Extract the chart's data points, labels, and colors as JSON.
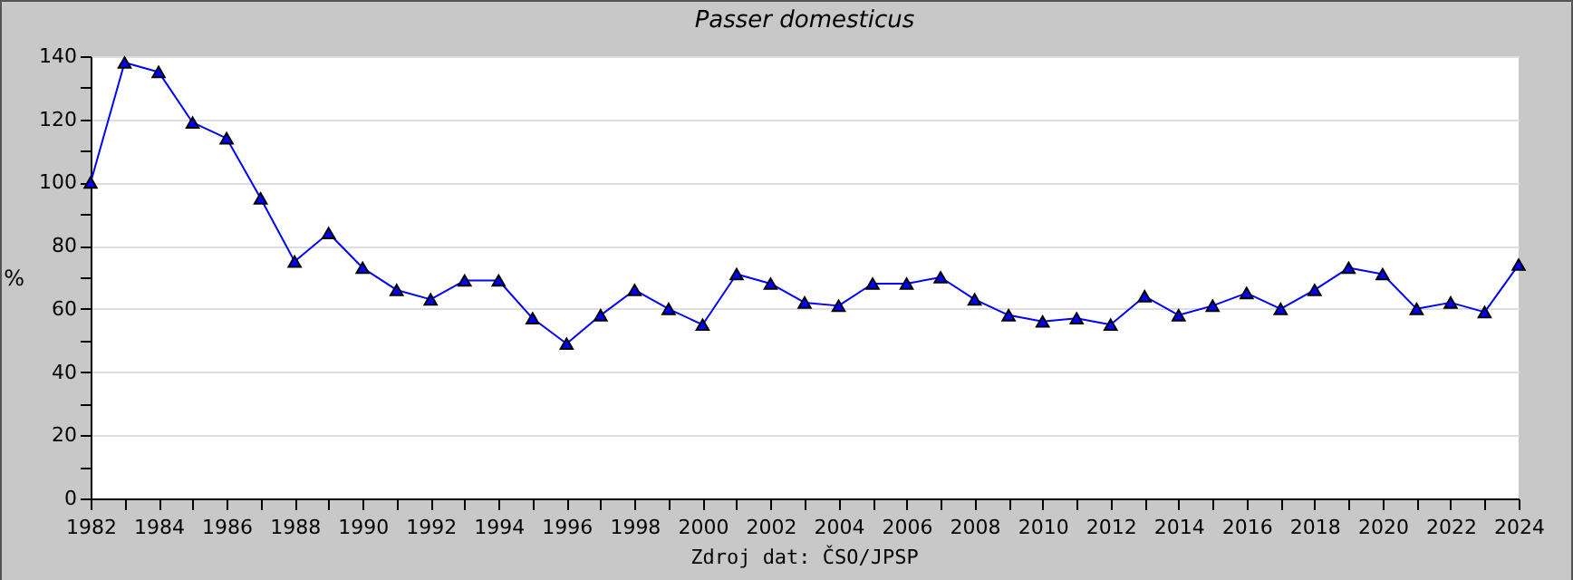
{
  "chart_data": {
    "type": "line",
    "title": "Passer domesticus",
    "ylabel": "%",
    "annotations": [
      "Zdroj dat: ČSO/JPSP"
    ],
    "x": [
      1982,
      1983,
      1984,
      1985,
      1986,
      1987,
      1988,
      1989,
      1990,
      1991,
      1992,
      1993,
      1994,
      1995,
      1996,
      1997,
      1998,
      1999,
      2000,
      2001,
      2002,
      2003,
      2004,
      2005,
      2006,
      2007,
      2008,
      2009,
      2010,
      2011,
      2012,
      2013,
      2014,
      2015,
      2016,
      2017,
      2018,
      2019,
      2020,
      2021,
      2022,
      2023,
      2024
    ],
    "series": [
      {
        "color": "#0000ff",
        "values": [
          100,
          138,
          135,
          119,
          114,
          95,
          75,
          84,
          73,
          66,
          63,
          69,
          69,
          57,
          49,
          58,
          66,
          60,
          55,
          71,
          68,
          62,
          61,
          68,
          68,
          70,
          63,
          58,
          56,
          57,
          55,
          64,
          58,
          61,
          65,
          60,
          66,
          73,
          71,
          60,
          62,
          59,
          74
        ]
      }
    ],
    "xlim": [
      1982,
      2024
    ],
    "xticks": [
      {
        "value": 1982,
        "label": "1982"
      },
      {
        "value": 1983,
        "label": null
      },
      {
        "value": 1984,
        "label": "1984"
      },
      {
        "value": 1985,
        "label": null
      },
      {
        "value": 1986,
        "label": "1986"
      },
      {
        "value": 1987,
        "label": null
      },
      {
        "value": 1988,
        "label": "1988"
      },
      {
        "value": 1989,
        "label": null
      },
      {
        "value": 1990,
        "label": "1990"
      },
      {
        "value": 1991,
        "label": null
      },
      {
        "value": 1992,
        "label": "1992"
      },
      {
        "value": 1993,
        "label": null
      },
      {
        "value": 1994,
        "label": "1994"
      },
      {
        "value": 1995,
        "label": null
      },
      {
        "value": 1996,
        "label": "1996"
      },
      {
        "value": 1997,
        "label": null
      },
      {
        "value": 1998,
        "label": "1998"
      },
      {
        "value": 1999,
        "label": null
      },
      {
        "value": 2000,
        "label": "2000"
      },
      {
        "value": 2001,
        "label": null
      },
      {
        "value": 2002,
        "label": "2002"
      },
      {
        "value": 2003,
        "label": null
      },
      {
        "value": 2004,
        "label": "2004"
      },
      {
        "value": 2005,
        "label": null
      },
      {
        "value": 2006,
        "label": "2006"
      },
      {
        "value": 2007,
        "label": null
      },
      {
        "value": 2008,
        "label": "2008"
      },
      {
        "value": 2009,
        "label": null
      },
      {
        "value": 2010,
        "label": "2010"
      },
      {
        "value": 2011,
        "label": null
      },
      {
        "value": 2012,
        "label": "2012"
      },
      {
        "value": 2013,
        "label": null
      },
      {
        "value": 2014,
        "label": "2014"
      },
      {
        "value": 2015,
        "label": null
      },
      {
        "value": 2016,
        "label": "2016"
      },
      {
        "value": 2017,
        "label": null
      },
      {
        "value": 2018,
        "label": "2018"
      },
      {
        "value": 2019,
        "label": null
      },
      {
        "value": 2020,
        "label": "2020"
      },
      {
        "value": 2021,
        "label": null
      },
      {
        "value": 2022,
        "label": "2022"
      },
      {
        "value": 2023,
        "label": null
      },
      {
        "value": 2024,
        "label": "2024"
      }
    ],
    "ylim": [
      0,
      140
    ],
    "yticks": [
      0,
      {
        "value": 10,
        "label": null
      },
      20,
      {
        "value": 30,
        "label": null
      },
      40,
      {
        "value": 50,
        "label": null
      },
      60,
      {
        "value": 70,
        "label": null
      },
      80,
      {
        "value": 90,
        "label": null
      },
      100,
      {
        "value": 110,
        "label": null
      },
      120,
      {
        "value": 130,
        "label": null
      },
      140
    ],
    "grid": "y",
    "marker": "triangle",
    "line_style": "solid",
    "legend": false
  }
}
